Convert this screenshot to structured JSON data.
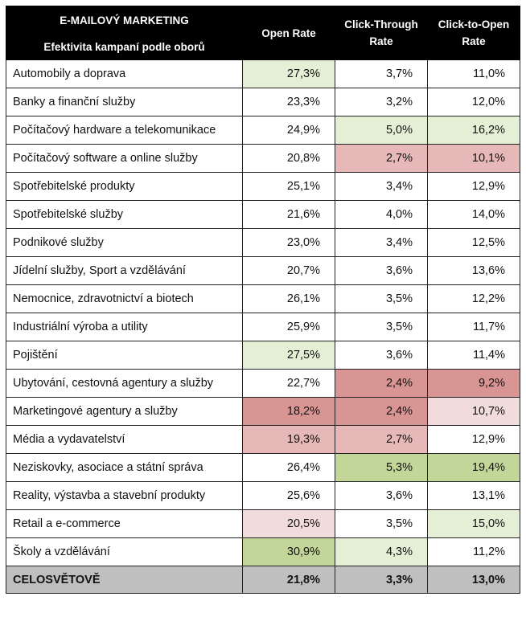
{
  "chart_data": {
    "type": "table",
    "title": "E-MAILOVÝ MARKETING",
    "subtitle": "Efektivita kampaní podle oborů",
    "columns": [
      "Open Rate",
      "Click-Through Rate",
      "Click-to-Open Rate"
    ],
    "rows": [
      {
        "label": "Automobily a doprava",
        "values": [
          "27,3%",
          "3,7%",
          "11,0%"
        ],
        "shading": [
          "good-light",
          "",
          ""
        ]
      },
      {
        "label": "Banky a finanční služby",
        "values": [
          "23,3%",
          "3,2%",
          "12,0%"
        ],
        "shading": [
          "",
          "",
          ""
        ]
      },
      {
        "label": "Počítačový hardware a telekomunikace",
        "values": [
          "24,9%",
          "5,0%",
          "16,2%"
        ],
        "shading": [
          "",
          "good-light",
          "good-light"
        ]
      },
      {
        "label": "Počítačový software a online služby",
        "values": [
          "20,8%",
          "2,7%",
          "10,1%"
        ],
        "shading": [
          "",
          "bad-mid",
          "bad-mid"
        ]
      },
      {
        "label": "Spotřebitelské produkty",
        "values": [
          "25,1%",
          "3,4%",
          "12,9%"
        ],
        "shading": [
          "",
          "",
          ""
        ]
      },
      {
        "label": "Spotřebitelské služby",
        "values": [
          "21,6%",
          "4,0%",
          "14,0%"
        ],
        "shading": [
          "",
          "",
          ""
        ]
      },
      {
        "label": "Podnikové služby",
        "values": [
          "23,0%",
          "3,4%",
          "12,5%"
        ],
        "shading": [
          "",
          "",
          ""
        ]
      },
      {
        "label": "Jídelní služby, Sport a vzdělávání",
        "values": [
          "20,7%",
          "3,6%",
          "13,6%"
        ],
        "shading": [
          "",
          "",
          ""
        ]
      },
      {
        "label": "Nemocnice, zdravotnictví a biotech",
        "values": [
          "26,1%",
          "3,5%",
          "12,2%"
        ],
        "shading": [
          "",
          "",
          ""
        ]
      },
      {
        "label": "Industriální výroba a utility",
        "values": [
          "25,9%",
          "3,5%",
          "11,7%"
        ],
        "shading": [
          "",
          "",
          ""
        ]
      },
      {
        "label": "Pojištění",
        "values": [
          "27,5%",
          "3,6%",
          "11,4%"
        ],
        "shading": [
          "good-light",
          "",
          ""
        ]
      },
      {
        "label": "Ubytování, cestovná agentury a služby",
        "values": [
          "22,7%",
          "2,4%",
          "9,2%"
        ],
        "shading": [
          "",
          "bad-strong",
          "bad-strong"
        ]
      },
      {
        "label": "Marketingové agentury a služby",
        "values": [
          "18,2%",
          "2,4%",
          "10,7%"
        ],
        "shading": [
          "bad-strong",
          "bad-strong",
          "bad-light"
        ]
      },
      {
        "label": "Média a vydavatelství",
        "values": [
          "19,3%",
          "2,7%",
          "12,9%"
        ],
        "shading": [
          "bad-mid",
          "bad-mid",
          ""
        ]
      },
      {
        "label": "Neziskovky, asociace a státní správa",
        "values": [
          "26,4%",
          "5,3%",
          "19,4%"
        ],
        "shading": [
          "",
          "good-strong",
          "good-strong"
        ]
      },
      {
        "label": "Reality, výstavba a stavební produkty",
        "values": [
          "25,6%",
          "3,6%",
          "13,1%"
        ],
        "shading": [
          "",
          "",
          ""
        ]
      },
      {
        "label": "Retail a e-commerce",
        "values": [
          "20,5%",
          "3,5%",
          "15,0%"
        ],
        "shading": [
          "bad-light",
          "",
          "good-light"
        ]
      },
      {
        "label": "Školy a vzdělávání",
        "values": [
          "30,9%",
          "4,3%",
          "11,2%"
        ],
        "shading": [
          "good-strong",
          "good-light",
          ""
        ]
      }
    ],
    "total": {
      "label": "CELOSVĚTOVĚ",
      "values": [
        "21,8%",
        "3,3%",
        "13,0%"
      ]
    },
    "colors": {
      "header_bg": "#000000",
      "good-strong": "#c2d69a",
      "good-light": "#e4efd6",
      "bad-strong": "#d99594",
      "bad-mid": "#e6b8b7",
      "bad-light": "#f2dcdb",
      "total_bg": "#bfbfbf"
    }
  }
}
